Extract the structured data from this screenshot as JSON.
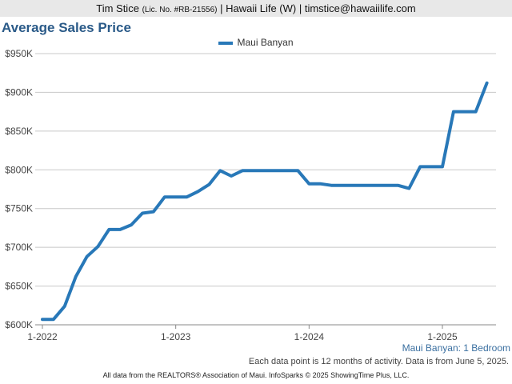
{
  "header": {
    "agent_name": "Tim Stice",
    "license": "(Lic. No. #RB-21556)",
    "details": "| Hawaii Life (W) | timstice@hawaiilife.com"
  },
  "footer": {
    "subset_label": "Maui Banyan: 1 Bedroom",
    "data_note": "Each data point is 12 months of activity. Data is from June 5, 2025.",
    "source_note": "All data from the REALTORS® Association of Maui. InfoSparks © 2025 ShowingTime Plus, LLC."
  },
  "colors": {
    "series": "#2878b8",
    "title": "#2a5a88",
    "grid": "#c8c8c8"
  },
  "chart_data": {
    "type": "line",
    "title": "Average Sales Price",
    "xlabel": "",
    "ylabel": "",
    "x_ticks": [
      "1-2022",
      "1-2023",
      "1-2024",
      "1-2025"
    ],
    "y_ticks": [
      "$600K",
      "$650K",
      "$700K",
      "$750K",
      "$800K",
      "$850K",
      "$900K",
      "$950K"
    ],
    "ylim": [
      600000,
      950000
    ],
    "legend_position": "top-center",
    "grid": true,
    "series": [
      {
        "name": "Maui Banyan",
        "x": [
          "2022-01",
          "2022-02",
          "2022-03",
          "2022-04",
          "2022-05",
          "2022-06",
          "2022-07",
          "2022-08",
          "2022-09",
          "2022-10",
          "2022-11",
          "2022-12",
          "2023-01",
          "2023-02",
          "2023-03",
          "2023-04",
          "2023-05",
          "2023-06",
          "2023-07",
          "2023-08",
          "2023-09",
          "2023-10",
          "2023-11",
          "2023-12",
          "2024-01",
          "2024-02",
          "2024-03",
          "2024-04",
          "2024-05",
          "2024-06",
          "2024-07",
          "2024-08",
          "2024-09",
          "2024-10",
          "2024-11",
          "2024-12",
          "2025-01",
          "2025-02",
          "2025-03",
          "2025-04",
          "2025-05"
        ],
        "values": [
          607000,
          607000,
          624000,
          662000,
          688000,
          701000,
          723000,
          723000,
          729000,
          744000,
          746000,
          765000,
          765000,
          765000,
          772000,
          781000,
          799000,
          792000,
          799000,
          799000,
          799000,
          799000,
          799000,
          799000,
          782000,
          782000,
          780000,
          780000,
          780000,
          780000,
          780000,
          780000,
          780000,
          776000,
          804000,
          804000,
          804000,
          875000,
          875000,
          875000,
          912000
        ]
      }
    ]
  }
}
